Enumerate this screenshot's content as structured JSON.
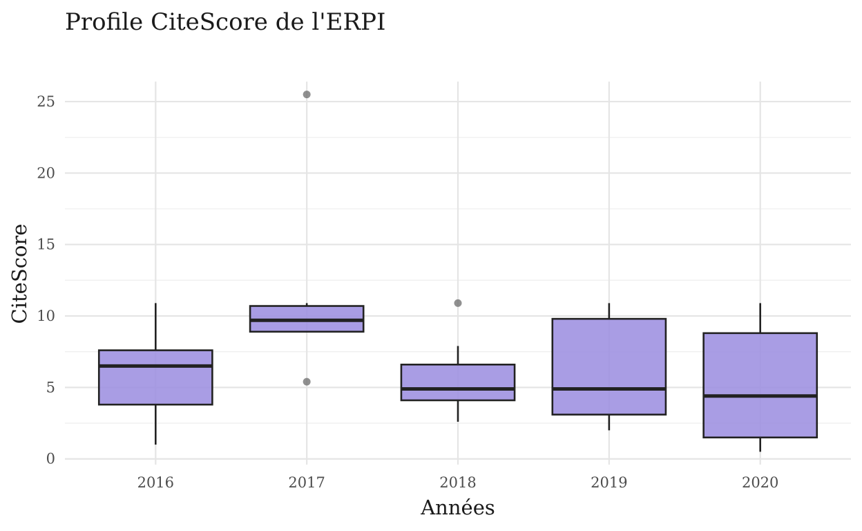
{
  "colors": {
    "box_fill": "#9d90e0",
    "box_stroke": "#222222",
    "outlier": "#6b6b6b",
    "grid": "#e5e5e5"
  },
  "chart_data": {
    "type": "boxplot",
    "title": "Profile CiteScore de l'ERPI",
    "xlabel": "Années",
    "ylabel": "CiteScore",
    "ylim": [
      -0.4,
      26.4
    ],
    "yticks": [
      0,
      5,
      10,
      15,
      20,
      25
    ],
    "yticks_minor": [
      2.5,
      7.5,
      12.5,
      17.5,
      22.5
    ],
    "grid": true,
    "legend": "none",
    "categories": [
      "2016",
      "2017",
      "2018",
      "2019",
      "2020"
    ],
    "boxes": [
      {
        "category": "2016",
        "whisker_low": 1.0,
        "q1": 3.8,
        "median": 6.5,
        "q3": 7.6,
        "whisker_high": 10.9,
        "outliers": []
      },
      {
        "category": "2017",
        "whisker_low": 8.9,
        "q1": 8.9,
        "median": 9.7,
        "q3": 10.7,
        "whisker_high": 10.9,
        "outliers": [
          25.5,
          5.4
        ]
      },
      {
        "category": "2018",
        "whisker_low": 2.6,
        "q1": 4.1,
        "median": 4.9,
        "q3": 6.6,
        "whisker_high": 7.9,
        "outliers": [
          10.9
        ]
      },
      {
        "category": "2019",
        "whisker_low": 2.0,
        "q1": 3.1,
        "median": 4.9,
        "q3": 9.8,
        "whisker_high": 10.9,
        "outliers": []
      },
      {
        "category": "2020",
        "whisker_low": 0.5,
        "q1": 1.5,
        "median": 4.4,
        "q3": 8.8,
        "whisker_high": 10.9,
        "outliers": []
      }
    ]
  }
}
